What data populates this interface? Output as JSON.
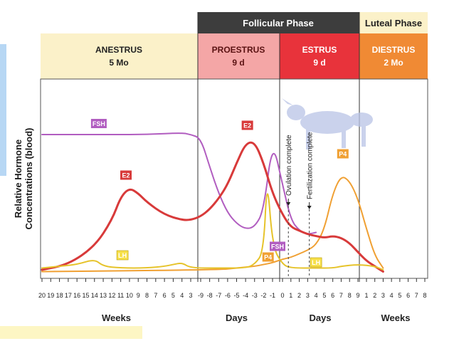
{
  "chart_data": {
    "type": "line",
    "ylabel": [
      "Relative Hormone",
      "Concentrations (blood)"
    ],
    "phase_groups": [
      {
        "label": "Follicular Phase",
        "color": "#3d3d3d",
        "text_color": "#ffffff"
      },
      {
        "label": "Luteal Phase",
        "color": "#fbf1c9",
        "text_color": "#222222"
      }
    ],
    "stages": [
      {
        "name": "ANESTRUS",
        "duration": "5 Mo",
        "color": "#fbf1c9",
        "text_color": "#222222"
      },
      {
        "name": "PROESTRUS",
        "duration": "9 d",
        "color": "#f4a6a6",
        "text_color": "#5a1212"
      },
      {
        "name": "ESTRUS",
        "duration": "9 d",
        "color": "#e8333b",
        "text_color": "#ffffff"
      },
      {
        "name": "DIESTRUS",
        "duration": "2 Mo",
        "color": "#f08a34",
        "text_color": "#ffffff"
      }
    ],
    "tick_groups": [
      {
        "unit": "Weeks",
        "ticks": [
          "20",
          "19",
          "18",
          "17",
          "16",
          "15",
          "14",
          "13",
          "12",
          "11",
          "10",
          "9",
          "8",
          "7",
          "6",
          "5",
          "4",
          "3"
        ]
      },
      {
        "unit": "Days",
        "ticks": [
          "-9",
          "-8",
          "-7",
          "-6",
          "-5",
          "-4",
          "-3",
          "-2",
          "-1"
        ]
      },
      {
        "unit": "Days",
        "ticks": [
          "0",
          "1",
          "2",
          "3",
          "4",
          "5",
          "6",
          "7",
          "8",
          "9"
        ]
      },
      {
        "unit": "Weeks",
        "ticks": [
          "1",
          "2",
          "3",
          "4",
          "5",
          "6",
          "7",
          "8"
        ]
      }
    ],
    "series": [
      {
        "name": "FSH",
        "color": "#b15dc0",
        "points": [
          [
            0,
            0.78
          ],
          [
            4,
            0.78
          ],
          [
            8,
            0.78
          ],
          [
            12,
            0.78
          ],
          [
            16,
            0.79
          ],
          [
            17,
            0.78
          ],
          [
            18,
            0.76
          ],
          [
            19,
            0.6
          ],
          [
            20,
            0.45
          ],
          [
            21,
            0.34
          ],
          [
            22,
            0.28
          ],
          [
            23,
            0.25
          ],
          [
            24,
            0.26
          ],
          [
            25,
            0.35
          ],
          [
            26,
            0.75
          ],
          [
            27,
            0.5
          ],
          [
            28,
            0.3
          ],
          [
            29,
            0.24
          ],
          [
            30,
            0.22
          ],
          [
            31,
            0.23
          ]
        ]
      },
      {
        "name": "E2",
        "color": "#d83a3a",
        "points": [
          [
            0,
            0.02
          ],
          [
            3,
            0.05
          ],
          [
            6,
            0.15
          ],
          [
            8,
            0.3
          ],
          [
            9,
            0.43
          ],
          [
            10,
            0.48
          ],
          [
            11,
            0.45
          ],
          [
            12,
            0.4
          ],
          [
            14,
            0.33
          ],
          [
            16,
            0.3
          ],
          [
            17,
            0.3
          ],
          [
            18,
            0.32
          ],
          [
            19,
            0.36
          ],
          [
            20,
            0.42
          ],
          [
            21,
            0.5
          ],
          [
            22,
            0.62
          ],
          [
            23,
            0.73
          ],
          [
            24,
            0.74
          ],
          [
            25,
            0.62
          ],
          [
            26,
            0.45
          ],
          [
            27,
            0.33
          ],
          [
            28,
            0.26
          ],
          [
            29,
            0.24
          ],
          [
            30,
            0.22
          ],
          [
            31,
            0.21
          ],
          [
            32,
            0.2
          ],
          [
            33,
            0.21
          ],
          [
            34,
            0.2
          ],
          [
            35,
            0.17
          ],
          [
            36,
            0.12
          ],
          [
            37,
            0.07
          ],
          [
            38,
            0.04
          ],
          [
            39,
            0.01
          ]
        ]
      },
      {
        "name": "P4",
        "color": "#f0a033",
        "points": [
          [
            0,
            0.01
          ],
          [
            20,
            0.02
          ],
          [
            22,
            0.03
          ],
          [
            24,
            0.04
          ],
          [
            25,
            0.05
          ],
          [
            26,
            0.06
          ],
          [
            27,
            0.08
          ],
          [
            28,
            0.09
          ],
          [
            29,
            0.11
          ],
          [
            30,
            0.13
          ],
          [
            31,
            0.16
          ],
          [
            32,
            0.25
          ],
          [
            33,
            0.45
          ],
          [
            34,
            0.55
          ],
          [
            35,
            0.52
          ],
          [
            36,
            0.42
          ],
          [
            37,
            0.25
          ],
          [
            38,
            0.1
          ],
          [
            39,
            0.03
          ]
        ]
      },
      {
        "name": "LH",
        "color": "#e6c32a",
        "points": [
          [
            0,
            0.03
          ],
          [
            2,
            0.04
          ],
          [
            4,
            0.05
          ],
          [
            6,
            0.08
          ],
          [
            7,
            0.04
          ],
          [
            9,
            0.03
          ],
          [
            12,
            0.03
          ],
          [
            14,
            0.04
          ],
          [
            15,
            0.05
          ],
          [
            16,
            0.06
          ],
          [
            17,
            0.03
          ],
          [
            20,
            0.03
          ],
          [
            23,
            0.03
          ],
          [
            24,
            0.05
          ],
          [
            25,
            0.12
          ],
          [
            25.4,
            0.55
          ],
          [
            26,
            0.15
          ],
          [
            27,
            0.05
          ],
          [
            28,
            0.03
          ],
          [
            31,
            0.03
          ],
          [
            33,
            0.03
          ],
          [
            34,
            0.04
          ],
          [
            36,
            0.05
          ],
          [
            38,
            0.04
          ],
          [
            39,
            0.02
          ]
        ]
      }
    ],
    "labels": [
      {
        "text": "FSH",
        "series": "FSH",
        "x": 6.5,
        "y": 0.84
      },
      {
        "text": "FSH",
        "series": "FSH",
        "x": 26.5,
        "y": 0.15
      },
      {
        "text": "E2",
        "series": "E2",
        "x": 9.6,
        "y": 0.55
      },
      {
        "text": "E2",
        "series": "E2",
        "x": 23.2,
        "y": 0.83
      },
      {
        "text": "LH",
        "series": "LH",
        "x": 9.2,
        "y": 0.1
      },
      {
        "text": "LH",
        "series": "LH",
        "x": 31,
        "y": 0.06
      },
      {
        "text": "P4",
        "series": "P4",
        "x": 25.5,
        "y": 0.09
      },
      {
        "text": "P4",
        "series": "P4",
        "x": 34.2,
        "y": 0.67
      }
    ],
    "annotations": [
      {
        "text": "Ovulation complete",
        "x": 27.7,
        "y": 0.38
      },
      {
        "text": "Fertilization complete",
        "x": 30.2,
        "y": 0.36
      }
    ]
  }
}
